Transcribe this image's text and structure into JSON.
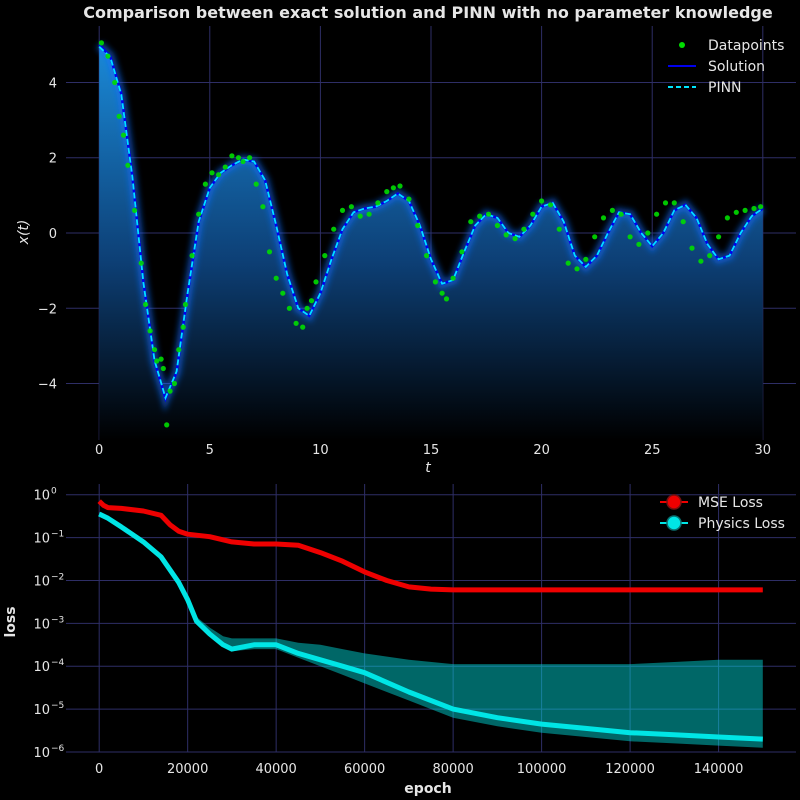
{
  "colors": {
    "background": "#000000",
    "grid": "#2e2e66",
    "datapoints": "#00dd00",
    "solution": "#0000ee",
    "pinn": "#00e5ff",
    "mse": "#ee0000",
    "physics": "#00e5e5",
    "text": "#e6e6e6"
  },
  "chart_data": [
    {
      "type": "line",
      "title": "Comparison between exact solution and PINN with no parameter knowledge",
      "xlabel": "t",
      "ylabel": "x(t)",
      "xlim": [
        -1.5,
        31.5
      ],
      "ylim": [
        -5.5,
        5.5
      ],
      "xticks": [
        "0",
        "5",
        "10",
        "15",
        "20",
        "25",
        "30"
      ],
      "yticks": [
        "−4",
        "−2",
        "0",
        "2",
        "4"
      ],
      "grid": true,
      "legend": "top-right",
      "legend_entries": [
        "Datapoints",
        "Solution",
        "PINN"
      ],
      "solution": {
        "t": [
          0,
          0.5,
          1.0,
          1.5,
          2.0,
          2.5,
          3.0,
          3.5,
          4.0,
          4.5,
          5.0,
          5.5,
          6.0,
          6.5,
          7.0,
          7.5,
          8.0,
          8.5,
          9.0,
          9.5,
          10.0,
          10.5,
          11.0,
          11.5,
          12.0,
          12.5,
          13.0,
          13.5,
          14.0,
          14.5,
          15.0,
          15.5,
          16.0,
          16.5,
          17.0,
          17.5,
          18.0,
          18.5,
          19.0,
          19.5,
          20.0,
          20.5,
          21.0,
          21.5,
          22.0,
          22.5,
          23.0,
          23.5,
          24.0,
          24.5,
          25.0,
          25.5,
          26.0,
          26.5,
          27.0,
          27.5,
          28.0,
          28.5,
          29.0,
          29.5,
          30.0
        ],
        "x": [
          5.0,
          4.7,
          3.7,
          1.5,
          -1.3,
          -3.4,
          -4.4,
          -3.7,
          -1.6,
          0.3,
          1.2,
          1.6,
          1.8,
          1.95,
          1.9,
          1.4,
          0.2,
          -1.1,
          -2.0,
          -2.2,
          -1.6,
          -0.7,
          0.1,
          0.55,
          0.65,
          0.7,
          0.85,
          1.05,
          0.85,
          0.2,
          -0.7,
          -1.35,
          -1.25,
          -0.5,
          0.2,
          0.5,
          0.4,
          0.0,
          -0.1,
          0.2,
          0.7,
          0.8,
          0.3,
          -0.6,
          -0.9,
          -0.6,
          0.0,
          0.55,
          0.5,
          0.0,
          -0.35,
          0.0,
          0.6,
          0.75,
          0.4,
          -0.3,
          -0.7,
          -0.6,
          0.0,
          0.45,
          0.65
        ]
      },
      "pinn": {
        "t": [
          0,
          0.5,
          1.0,
          1.5,
          2.0,
          2.5,
          3.0,
          3.5,
          4.0,
          4.5,
          5.0,
          5.5,
          6.0,
          6.5,
          7.0,
          7.5,
          8.0,
          8.5,
          9.0,
          9.5,
          10.0,
          10.5,
          11.0,
          11.5,
          12.0,
          12.5,
          13.0,
          13.5,
          14.0,
          14.5,
          15.0,
          15.5,
          16.0,
          16.5,
          17.0,
          17.5,
          18.0,
          18.5,
          19.0,
          19.5,
          20.0,
          20.5,
          21.0,
          21.5,
          22.0,
          22.5,
          23.0,
          23.5,
          24.0,
          24.5,
          25.0,
          25.5,
          26.0,
          26.5,
          27.0,
          27.5,
          28.0,
          28.5,
          29.0,
          29.5,
          30.0
        ],
        "x": [
          4.95,
          4.68,
          3.68,
          1.48,
          -1.32,
          -3.38,
          -4.38,
          -3.68,
          -1.58,
          0.3,
          1.2,
          1.6,
          1.8,
          1.95,
          1.9,
          1.4,
          0.2,
          -1.1,
          -2.0,
          -2.2,
          -1.6,
          -0.7,
          0.1,
          0.55,
          0.65,
          0.7,
          0.85,
          1.05,
          0.85,
          0.2,
          -0.7,
          -1.35,
          -1.25,
          -0.5,
          0.2,
          0.5,
          0.4,
          0.0,
          -0.1,
          0.2,
          0.7,
          0.8,
          0.3,
          -0.6,
          -0.9,
          -0.6,
          0.0,
          0.55,
          0.5,
          0.0,
          -0.35,
          0.0,
          0.6,
          0.75,
          0.4,
          -0.3,
          -0.7,
          -0.6,
          0.0,
          0.45,
          0.65
        ]
      },
      "datapoints": {
        "t": [
          0.1,
          0.4,
          0.7,
          0.9,
          1.1,
          1.3,
          1.6,
          1.9,
          2.1,
          2.3,
          2.5,
          2.6,
          2.8,
          2.9,
          3.05,
          3.2,
          3.4,
          3.6,
          3.8,
          3.9,
          4.2,
          4.5,
          4.8,
          5.1,
          5.4,
          5.7,
          6.0,
          6.3,
          6.5,
          6.8,
          7.1,
          7.4,
          7.7,
          8.0,
          8.3,
          8.6,
          8.9,
          9.2,
          9.4,
          9.6,
          9.8,
          10.2,
          10.6,
          11.0,
          11.4,
          11.8,
          12.2,
          12.6,
          13.0,
          13.3,
          13.6,
          14.0,
          14.4,
          14.8,
          15.2,
          15.5,
          15.7,
          16.0,
          16.4,
          16.8,
          17.2,
          17.6,
          18.0,
          18.4,
          18.8,
          19.2,
          19.6,
          20.0,
          20.4,
          20.8,
          21.2,
          21.6,
          22.0,
          22.4,
          22.8,
          23.2,
          23.6,
          24.0,
          24.4,
          24.8,
          25.2,
          25.6,
          26.0,
          26.4,
          26.8,
          27.2,
          27.6,
          28.0,
          28.4,
          28.8,
          29.2,
          29.6,
          29.9
        ],
        "x": [
          5.05,
          4.7,
          4.0,
          3.1,
          2.6,
          1.8,
          0.6,
          -0.8,
          -1.9,
          -2.6,
          -3.1,
          -3.4,
          -3.35,
          -3.6,
          -5.1,
          -4.2,
          -4.0,
          -3.1,
          -2.5,
          -1.9,
          -0.6,
          0.5,
          1.3,
          1.6,
          1.55,
          1.75,
          2.05,
          2.0,
          1.9,
          2.0,
          1.3,
          0.7,
          -0.5,
          -1.2,
          -1.6,
          -2.0,
          -2.4,
          -2.5,
          -2.0,
          -1.8,
          -1.3,
          -0.6,
          0.1,
          0.6,
          0.7,
          0.45,
          0.5,
          0.8,
          1.1,
          1.2,
          1.25,
          0.9,
          0.2,
          -0.6,
          -1.3,
          -1.6,
          -1.75,
          -1.2,
          -0.5,
          0.3,
          0.45,
          0.5,
          0.2,
          -0.05,
          -0.15,
          0.1,
          0.5,
          0.85,
          0.75,
          0.1,
          -0.8,
          -0.95,
          -0.7,
          -0.1,
          0.4,
          0.6,
          0.5,
          -0.1,
          -0.3,
          0.0,
          0.5,
          0.8,
          0.8,
          0.3,
          -0.4,
          -0.75,
          -0.6,
          -0.1,
          0.4,
          0.55,
          0.6,
          0.65,
          0.7
        ]
      }
    },
    {
      "type": "line",
      "title": "",
      "xlabel": "epoch",
      "ylabel": "loss",
      "yscale": "log",
      "xlim": [
        -7500,
        157500
      ],
      "ylim_exp": [
        -6,
        0.25
      ],
      "xticks": [
        "0",
        "20000",
        "40000",
        "60000",
        "80000",
        "100000",
        "120000",
        "140000"
      ],
      "yticks": [
        "10",
        "10",
        "10",
        "10",
        "10",
        "10",
        "10"
      ],
      "ytick_exponents": [
        "−6",
        "−5",
        "−4",
        "−3",
        "−2",
        "−1",
        "0"
      ],
      "grid": true,
      "legend": "top-right",
      "legend_entries": [
        "MSE Loss",
        "Physics Loss"
      ],
      "series": [
        {
          "name": "MSE Loss",
          "x": [
            0,
            1000,
            2000,
            5000,
            10000,
            14000,
            16000,
            18000,
            20000,
            25000,
            30000,
            35000,
            40000,
            45000,
            50000,
            55000,
            60000,
            65000,
            70000,
            75000,
            80000,
            100000,
            120000,
            150000
          ],
          "log10_y": [
            -0.15,
            -0.25,
            -0.3,
            -0.32,
            -0.38,
            -0.48,
            -0.7,
            -0.85,
            -0.92,
            -0.98,
            -1.1,
            -1.15,
            -1.15,
            -1.18,
            -1.35,
            -1.55,
            -1.8,
            -2.0,
            -2.15,
            -2.2,
            -2.22,
            -2.22,
            -2.22,
            -2.22
          ]
        },
        {
          "name": "Physics Loss",
          "x": [
            0,
            2000,
            5000,
            10000,
            14000,
            16000,
            18000,
            20000,
            22000,
            25000,
            28000,
            30000,
            35000,
            40000,
            45000,
            50000,
            55000,
            60000,
            70000,
            80000,
            90000,
            100000,
            110000,
            120000,
            130000,
            140000,
            150000
          ],
          "log10_y": [
            -0.45,
            -0.55,
            -0.75,
            -1.1,
            -1.45,
            -1.75,
            -2.05,
            -2.45,
            -2.95,
            -3.25,
            -3.5,
            -3.6,
            -3.5,
            -3.5,
            -3.7,
            -3.85,
            -4.0,
            -4.15,
            -4.6,
            -5.0,
            -5.2,
            -5.35,
            -5.45,
            -5.55,
            -5.6,
            -5.65,
            -5.7
          ],
          "log10_upper": [
            -0.4,
            -0.5,
            -0.7,
            -1.05,
            -1.4,
            -1.7,
            -2.0,
            -2.4,
            -2.85,
            -3.1,
            -3.3,
            -3.35,
            -3.35,
            -3.35,
            -3.45,
            -3.5,
            -3.6,
            -3.7,
            -3.85,
            -3.95,
            -3.95,
            -3.95,
            -3.95,
            -3.95,
            -3.9,
            -3.85,
            -3.85
          ],
          "log10_lower": [
            -0.45,
            -0.55,
            -0.75,
            -1.1,
            -1.45,
            -1.75,
            -2.05,
            -2.5,
            -3.0,
            -3.3,
            -3.55,
            -3.65,
            -3.6,
            -3.6,
            -3.8,
            -4.0,
            -4.2,
            -4.4,
            -4.8,
            -5.2,
            -5.4,
            -5.55,
            -5.65,
            -5.75,
            -5.8,
            -5.85,
            -5.9
          ]
        }
      ]
    }
  ]
}
